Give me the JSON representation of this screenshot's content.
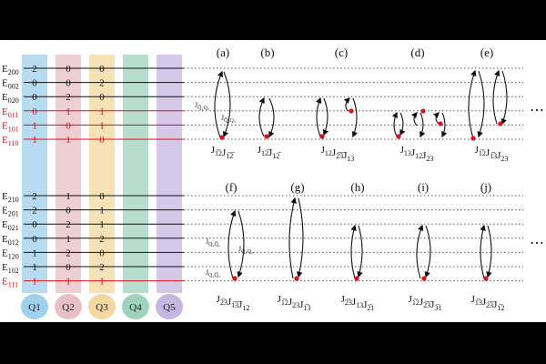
{
  "colors": {
    "black": "#111111",
    "red": "#d8131b",
    "q1": "#9fd0ee",
    "q2": "#e8bfc6",
    "q3": "#f4d8a0",
    "q4": "#9fd2bd",
    "q5": "#c7b6e2"
  },
  "qubits": [
    "Q1",
    "Q2",
    "Q3",
    "Q4",
    "Q5"
  ],
  "ellipsis": "⋯",
  "top_states": [
    {
      "label": "E",
      "sub": "200",
      "digits": [
        "2",
        "0",
        "0"
      ],
      "red": false
    },
    {
      "label": "E",
      "sub": "002",
      "digits": [
        "0",
        "0",
        "2"
      ],
      "red": false
    },
    {
      "label": "E",
      "sub": "020",
      "digits": [
        "0",
        "2",
        "0"
      ],
      "red": false
    },
    {
      "label": "E",
      "sub": "011",
      "digits": [
        "0",
        "1",
        "1"
      ],
      "red": true
    },
    {
      "label": "E",
      "sub": "101",
      "digits": [
        "1",
        "0",
        "1"
      ],
      "red": true
    },
    {
      "label": "E",
      "sub": "110",
      "digits": [
        "1",
        "1",
        "0"
      ],
      "red": true
    }
  ],
  "bottom_states": [
    {
      "label": "E",
      "sub": "210",
      "digits": [
        "2",
        "1",
        "0"
      ],
      "red": false
    },
    {
      "label": "E",
      "sub": "201",
      "digits": [
        "2",
        "0",
        "1"
      ],
      "red": false
    },
    {
      "label": "E",
      "sub": "021",
      "digits": [
        "0",
        "2",
        "1"
      ],
      "red": false
    },
    {
      "label": "E",
      "sub": "012",
      "digits": [
        "0",
        "1",
        "2"
      ],
      "red": false
    },
    {
      "label": "E",
      "sub": "120",
      "digits": [
        "1",
        "2",
        "0"
      ],
      "red": false
    },
    {
      "label": "E",
      "sub": "102",
      "digits": [
        "1",
        "0",
        "2"
      ],
      "red": false
    },
    {
      "label": "E",
      "sub": "111",
      "digits": [
        "1",
        "1",
        "1"
      ],
      "red": true
    }
  ],
  "panels_top": [
    "(a)",
    "(b)",
    "(c)",
    "(d)",
    "(e)"
  ],
  "panels_bottom": [
    "(f)",
    "(g)",
    "(h)",
    "(i)",
    "(j)"
  ],
  "coupling_labels": {
    "a_upper": "J",
    "a_upper_sub": "Q̅₁Q₃",
    "a_lower_sub": "Q̅₁Q₃",
    "f_upper": "J",
    "f_upper_sub": "Q₁Q̅₃",
    "f_mid_sub": "Q₁Q₂",
    "f_lower_sub": "Q₂Q̅₃"
  },
  "j_labels_top": [
    [
      {
        "b": "J",
        "s": "1̅2"
      },
      {
        "b": "J",
        "s": "1̅2̅"
      }
    ],
    [
      {
        "b": "J",
        "s": "12̅"
      },
      {
        "b": "J",
        "s": "12̅"
      }
    ],
    [
      {
        "b": "J",
        "s": "12"
      },
      {
        "b": "J",
        "s": "2̅3̅"
      },
      {
        "b": "J",
        "s": "13"
      }
    ],
    [
      {
        "b": "J",
        "s": "13"
      },
      {
        "b": "J",
        "s": "12"
      },
      {
        "b": "J",
        "s": "23"
      }
    ],
    [
      {
        "b": "J",
        "s": "1̅2"
      },
      {
        "b": "J",
        "s": "1̅3"
      },
      {
        "b": "J",
        "s": "23"
      }
    ]
  ],
  "j_labels_bottom": [
    [
      {
        "b": "J",
        "s": "2̅3"
      },
      {
        "b": "J",
        "s": "1̅3̅"
      },
      {
        "b": "J",
        "s": "12"
      }
    ],
    [
      {
        "b": "J",
        "s": "1̅2"
      },
      {
        "b": "J",
        "s": "23"
      },
      {
        "b": "J",
        "s": "1̅3"
      }
    ],
    [
      {
        "b": "J",
        "s": "2̅3"
      },
      {
        "b": "J",
        "s": "13"
      },
      {
        "b": "J",
        "s": "2̅1"
      }
    ],
    [
      {
        "b": "J",
        "s": "1̅2"
      },
      {
        "b": "J",
        "s": "2̅3̅"
      },
      {
        "b": "J",
        "s": "3̅1"
      }
    ],
    [
      {
        "b": "J",
        "s": "1̅3"
      },
      {
        "b": "J",
        "s": "2̅3̅"
      },
      {
        "b": "J",
        "s": "1̅2"
      }
    ]
  ]
}
